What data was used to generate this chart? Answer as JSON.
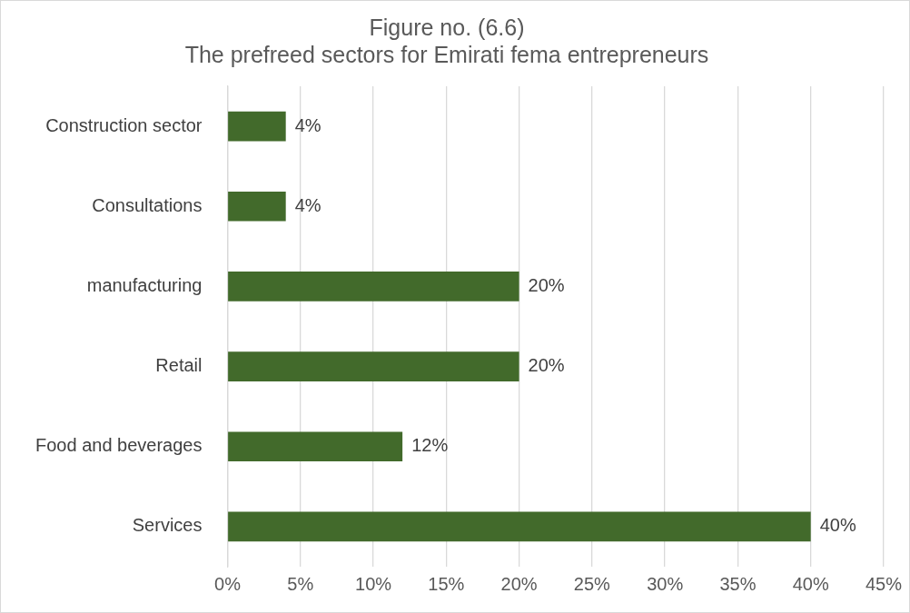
{
  "chart_data": {
    "type": "bar",
    "orientation": "horizontal",
    "title": "Figure no. (6.6)",
    "subtitle": "The prefreed sectors for Emirati fema entrepreneurs",
    "categories": [
      "Construction sector",
      "Consultations",
      "manufacturing",
      "Retail",
      "Food and beverages",
      "Services"
    ],
    "values": [
      4,
      4,
      20,
      20,
      12,
      40
    ],
    "value_labels": [
      "4%",
      "4%",
      "20%",
      "20%",
      "12%",
      "40%"
    ],
    "color": "#426a2b",
    "xlim": [
      0,
      45
    ],
    "xticks": [
      {
        "value": 0,
        "label": "0%"
      },
      {
        "value": 5,
        "label": "5%"
      },
      {
        "value": 10,
        "label": "10%"
      },
      {
        "value": 15,
        "label": "15%"
      },
      {
        "value": 20,
        "label": "20%"
      },
      {
        "value": 25,
        "label": "25%"
      },
      {
        "value": 30,
        "label": "30%"
      },
      {
        "value": 35,
        "label": "35%"
      },
      {
        "value": 40,
        "label": "40%"
      },
      {
        "value": 45,
        "label": "45%"
      }
    ],
    "grid": "x"
  }
}
